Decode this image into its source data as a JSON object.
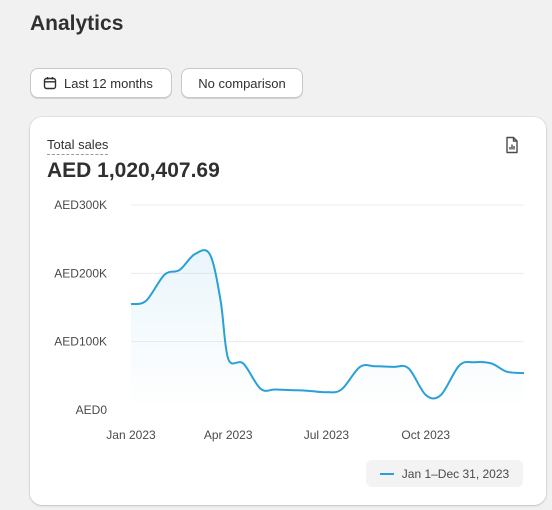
{
  "page": {
    "title": "Analytics"
  },
  "toolbar": {
    "date_range_label": "Last 12 months",
    "comparison_label": "No comparison"
  },
  "card": {
    "metric_label": "Total sales",
    "metric_value": "AED 1,020,407.69"
  },
  "chart_data": {
    "type": "area",
    "title": "",
    "xlabel": "",
    "ylabel": "",
    "ylim": [
      0,
      300000
    ],
    "yticks": [
      "AED0",
      "AED100K",
      "AED200K",
      "AED300K"
    ],
    "xticks": [
      "Jan 2023",
      "Apr 2023",
      "Jul 2023",
      "Oct 2023"
    ],
    "grid": true,
    "color": "#2aa0d8",
    "series": [
      {
        "name": "Jan 1–Dec 31, 2023",
        "x": [
          "2023-01-01",
          "2023-01-15",
          "2023-02-01",
          "2023-02-15",
          "2023-03-01",
          "2023-03-15",
          "2023-03-25",
          "2023-04-01",
          "2023-04-15",
          "2023-05-01",
          "2023-05-15",
          "2023-06-01",
          "2023-06-15",
          "2023-07-01",
          "2023-07-15",
          "2023-08-01",
          "2023-08-15",
          "2023-09-01",
          "2023-09-15",
          "2023-10-01",
          "2023-10-15",
          "2023-11-01",
          "2023-11-15",
          "2023-12-01",
          "2023-12-15",
          "2023-12-31"
        ],
        "values": [
          155000,
          160000,
          198000,
          205000,
          228000,
          228000,
          160000,
          75000,
          68000,
          31000,
          30000,
          29000,
          28000,
          26000,
          30000,
          63000,
          64000,
          63000,
          61000,
          22000,
          22000,
          65000,
          70000,
          68000,
          56000,
          54000
        ]
      }
    ],
    "legend": {
      "position": "bottom-right"
    }
  }
}
